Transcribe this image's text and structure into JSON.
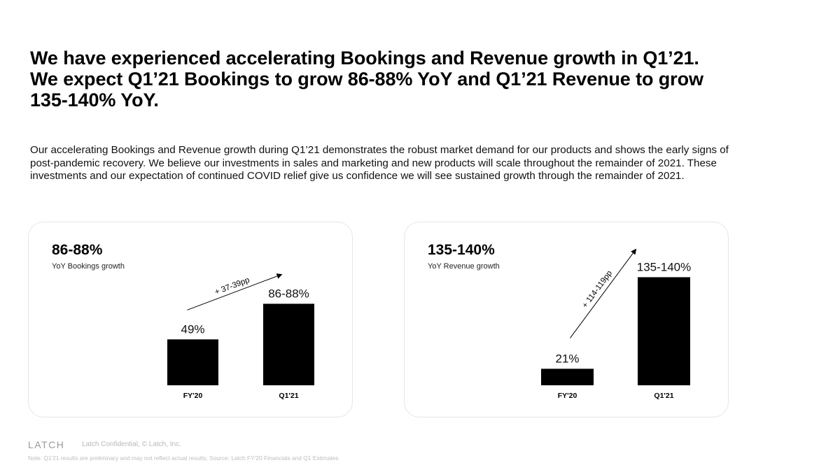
{
  "headline": "We have experienced accelerating Bookings and Revenue growth in Q1’21. We expect Q1’21 Bookings to grow 86-88% YoY and Q1’21 Revenue to grow 135-140% YoY.",
  "body": "Our accelerating Bookings and Revenue growth during Q1’21 demonstrates the robust market demand for our products and shows the early signs of post-pandemic recovery. We believe our investments in sales and marketing and new products will scale throughout the remainder of 2021. These investments and our expectation of continued COVID relief give us confidence we will see sustained growth through the remainder of 2021.",
  "cards": [
    {
      "metric": "86-88%",
      "caption": "YoY Bookings growth"
    },
    {
      "metric": "135-140%",
      "caption": "YoY Revenue growth"
    }
  ],
  "chart_data": [
    {
      "type": "bar",
      "categories": [
        "FY'20",
        "Q1'21"
      ],
      "values": [
        49,
        87
      ],
      "value_labels": [
        "49%",
        "86-88%"
      ],
      "ylim": [
        0,
        100
      ],
      "annotation": "+ 37-39pp",
      "title": "",
      "xlabel": "",
      "ylabel": "",
      "bar_color": "#000000"
    },
    {
      "type": "bar",
      "categories": [
        "FY'20",
        "Q1'21"
      ],
      "values": [
        21,
        137.5
      ],
      "value_labels": [
        "21%",
        "135-140%"
      ],
      "ylim": [
        0,
        145
      ],
      "annotation": "+ 114-119pp",
      "title": "",
      "xlabel": "",
      "ylabel": "",
      "bar_color": "#000000"
    }
  ],
  "footer": {
    "brand": "LATCH",
    "confidential": "Latch Confidential, © Latch, Inc.",
    "note": "Note: Q1'21 results are preliminary and may not reflect actual results; Source: Latch FY'20 Financials and Q1 Estimates"
  }
}
